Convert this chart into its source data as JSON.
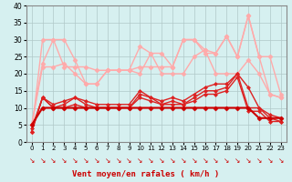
{
  "xlabel": "Vent moyen/en rafales ( km/h )",
  "background_color": "#d6f0f0",
  "grid_color": "#b0c8c8",
  "xlim": [
    -0.5,
    23.5
  ],
  "ylim": [
    0,
    40
  ],
  "yticks": [
    0,
    5,
    10,
    15,
    20,
    25,
    30,
    35,
    40
  ],
  "xticks": [
    0,
    1,
    2,
    3,
    4,
    5,
    6,
    7,
    8,
    9,
    10,
    11,
    12,
    13,
    14,
    15,
    16,
    17,
    18,
    19,
    20,
    21,
    22,
    23
  ],
  "series": [
    {
      "x": [
        0,
        1,
        2,
        3,
        4,
        5,
        6,
        7,
        8,
        9,
        10,
        11,
        12,
        13,
        14,
        15,
        16,
        17,
        18,
        19,
        20,
        21,
        22,
        23
      ],
      "y": [
        3,
        30,
        30,
        22,
        22,
        22,
        21,
        21,
        21,
        21,
        22,
        22,
        22,
        22,
        30,
        30,
        27,
        26,
        31,
        25,
        37,
        25,
        14,
        13
      ],
      "color": "#ffaaaa",
      "lw": 1.0,
      "marker": "D",
      "ms": 2.5,
      "zorder": 2
    },
    {
      "x": [
        0,
        1,
        2,
        3,
        4,
        5,
        6,
        7,
        8,
        9,
        10,
        11,
        12,
        13,
        14,
        15,
        16,
        17,
        18,
        19,
        20,
        21,
        22,
        23
      ],
      "y": [
        5,
        23,
        30,
        30,
        24,
        17,
        17,
        21,
        21,
        21,
        28,
        26,
        26,
        22,
        30,
        30,
        26,
        26,
        31,
        25,
        37,
        25,
        25,
        14
      ],
      "color": "#ffaaaa",
      "lw": 1.0,
      "marker": "D",
      "ms": 2.5,
      "zorder": 2
    },
    {
      "x": [
        0,
        1,
        2,
        3,
        4,
        5,
        6,
        7,
        8,
        9,
        10,
        11,
        12,
        13,
        14,
        15,
        16,
        17,
        18,
        19,
        20,
        21,
        22,
        23
      ],
      "y": [
        5,
        22,
        22,
        23,
        20,
        17,
        17,
        21,
        21,
        21,
        20,
        26,
        20,
        20,
        20,
        25,
        27,
        20,
        20,
        20,
        24,
        20,
        14,
        13
      ],
      "color": "#ffaaaa",
      "lw": 1.0,
      "marker": "D",
      "ms": 2.5,
      "zorder": 2
    },
    {
      "x": [
        0,
        1,
        2,
        3,
        4,
        5,
        6,
        7,
        8,
        9,
        10,
        11,
        12,
        13,
        14,
        15,
        16,
        17,
        18,
        19,
        20,
        21,
        22,
        23
      ],
      "y": [
        4,
        13,
        11,
        12,
        13,
        12,
        11,
        11,
        11,
        11,
        15,
        13,
        12,
        13,
        12,
        14,
        16,
        17,
        17,
        20,
        16,
        10,
        8,
        7
      ],
      "color": "#dd2222",
      "lw": 1.0,
      "marker": "D",
      "ms": 2.0,
      "zorder": 4
    },
    {
      "x": [
        0,
        1,
        2,
        3,
        4,
        5,
        6,
        7,
        8,
        9,
        10,
        11,
        12,
        13,
        14,
        15,
        16,
        17,
        18,
        19,
        20,
        21,
        22,
        23
      ],
      "y": [
        3,
        13,
        10,
        11,
        13,
        11,
        10,
        10,
        10,
        10,
        14,
        13,
        11,
        12,
        11,
        13,
        15,
        15,
        16,
        20,
        10,
        10,
        7,
        6
      ],
      "color": "#dd2222",
      "lw": 1.0,
      "marker": "D",
      "ms": 2.0,
      "zorder": 4
    },
    {
      "x": [
        0,
        1,
        2,
        3,
        4,
        5,
        6,
        7,
        8,
        9,
        10,
        11,
        12,
        13,
        14,
        15,
        16,
        17,
        18,
        19,
        20,
        21,
        22,
        23
      ],
      "y": [
        3,
        13,
        10,
        10,
        11,
        10,
        10,
        10,
        10,
        10,
        13,
        12,
        11,
        11,
        11,
        12,
        14,
        14,
        15,
        19,
        9,
        9,
        6,
        6
      ],
      "color": "#dd2222",
      "lw": 1.0,
      "marker": "D",
      "ms": 2.0,
      "zorder": 4
    },
    {
      "x": [
        0,
        1,
        2,
        3,
        4,
        5,
        6,
        7,
        8,
        9,
        10,
        11,
        12,
        13,
        14,
        15,
        16,
        17,
        18,
        19,
        20,
        21,
        22,
        23
      ],
      "y": [
        5,
        10,
        10,
        10,
        10,
        10,
        10,
        10,
        10,
        10,
        10,
        10,
        10,
        10,
        10,
        10,
        10,
        10,
        10,
        10,
        10,
        7,
        7,
        7
      ],
      "color": "#cc0000",
      "lw": 1.5,
      "marker": "D",
      "ms": 2.5,
      "zorder": 5
    }
  ]
}
